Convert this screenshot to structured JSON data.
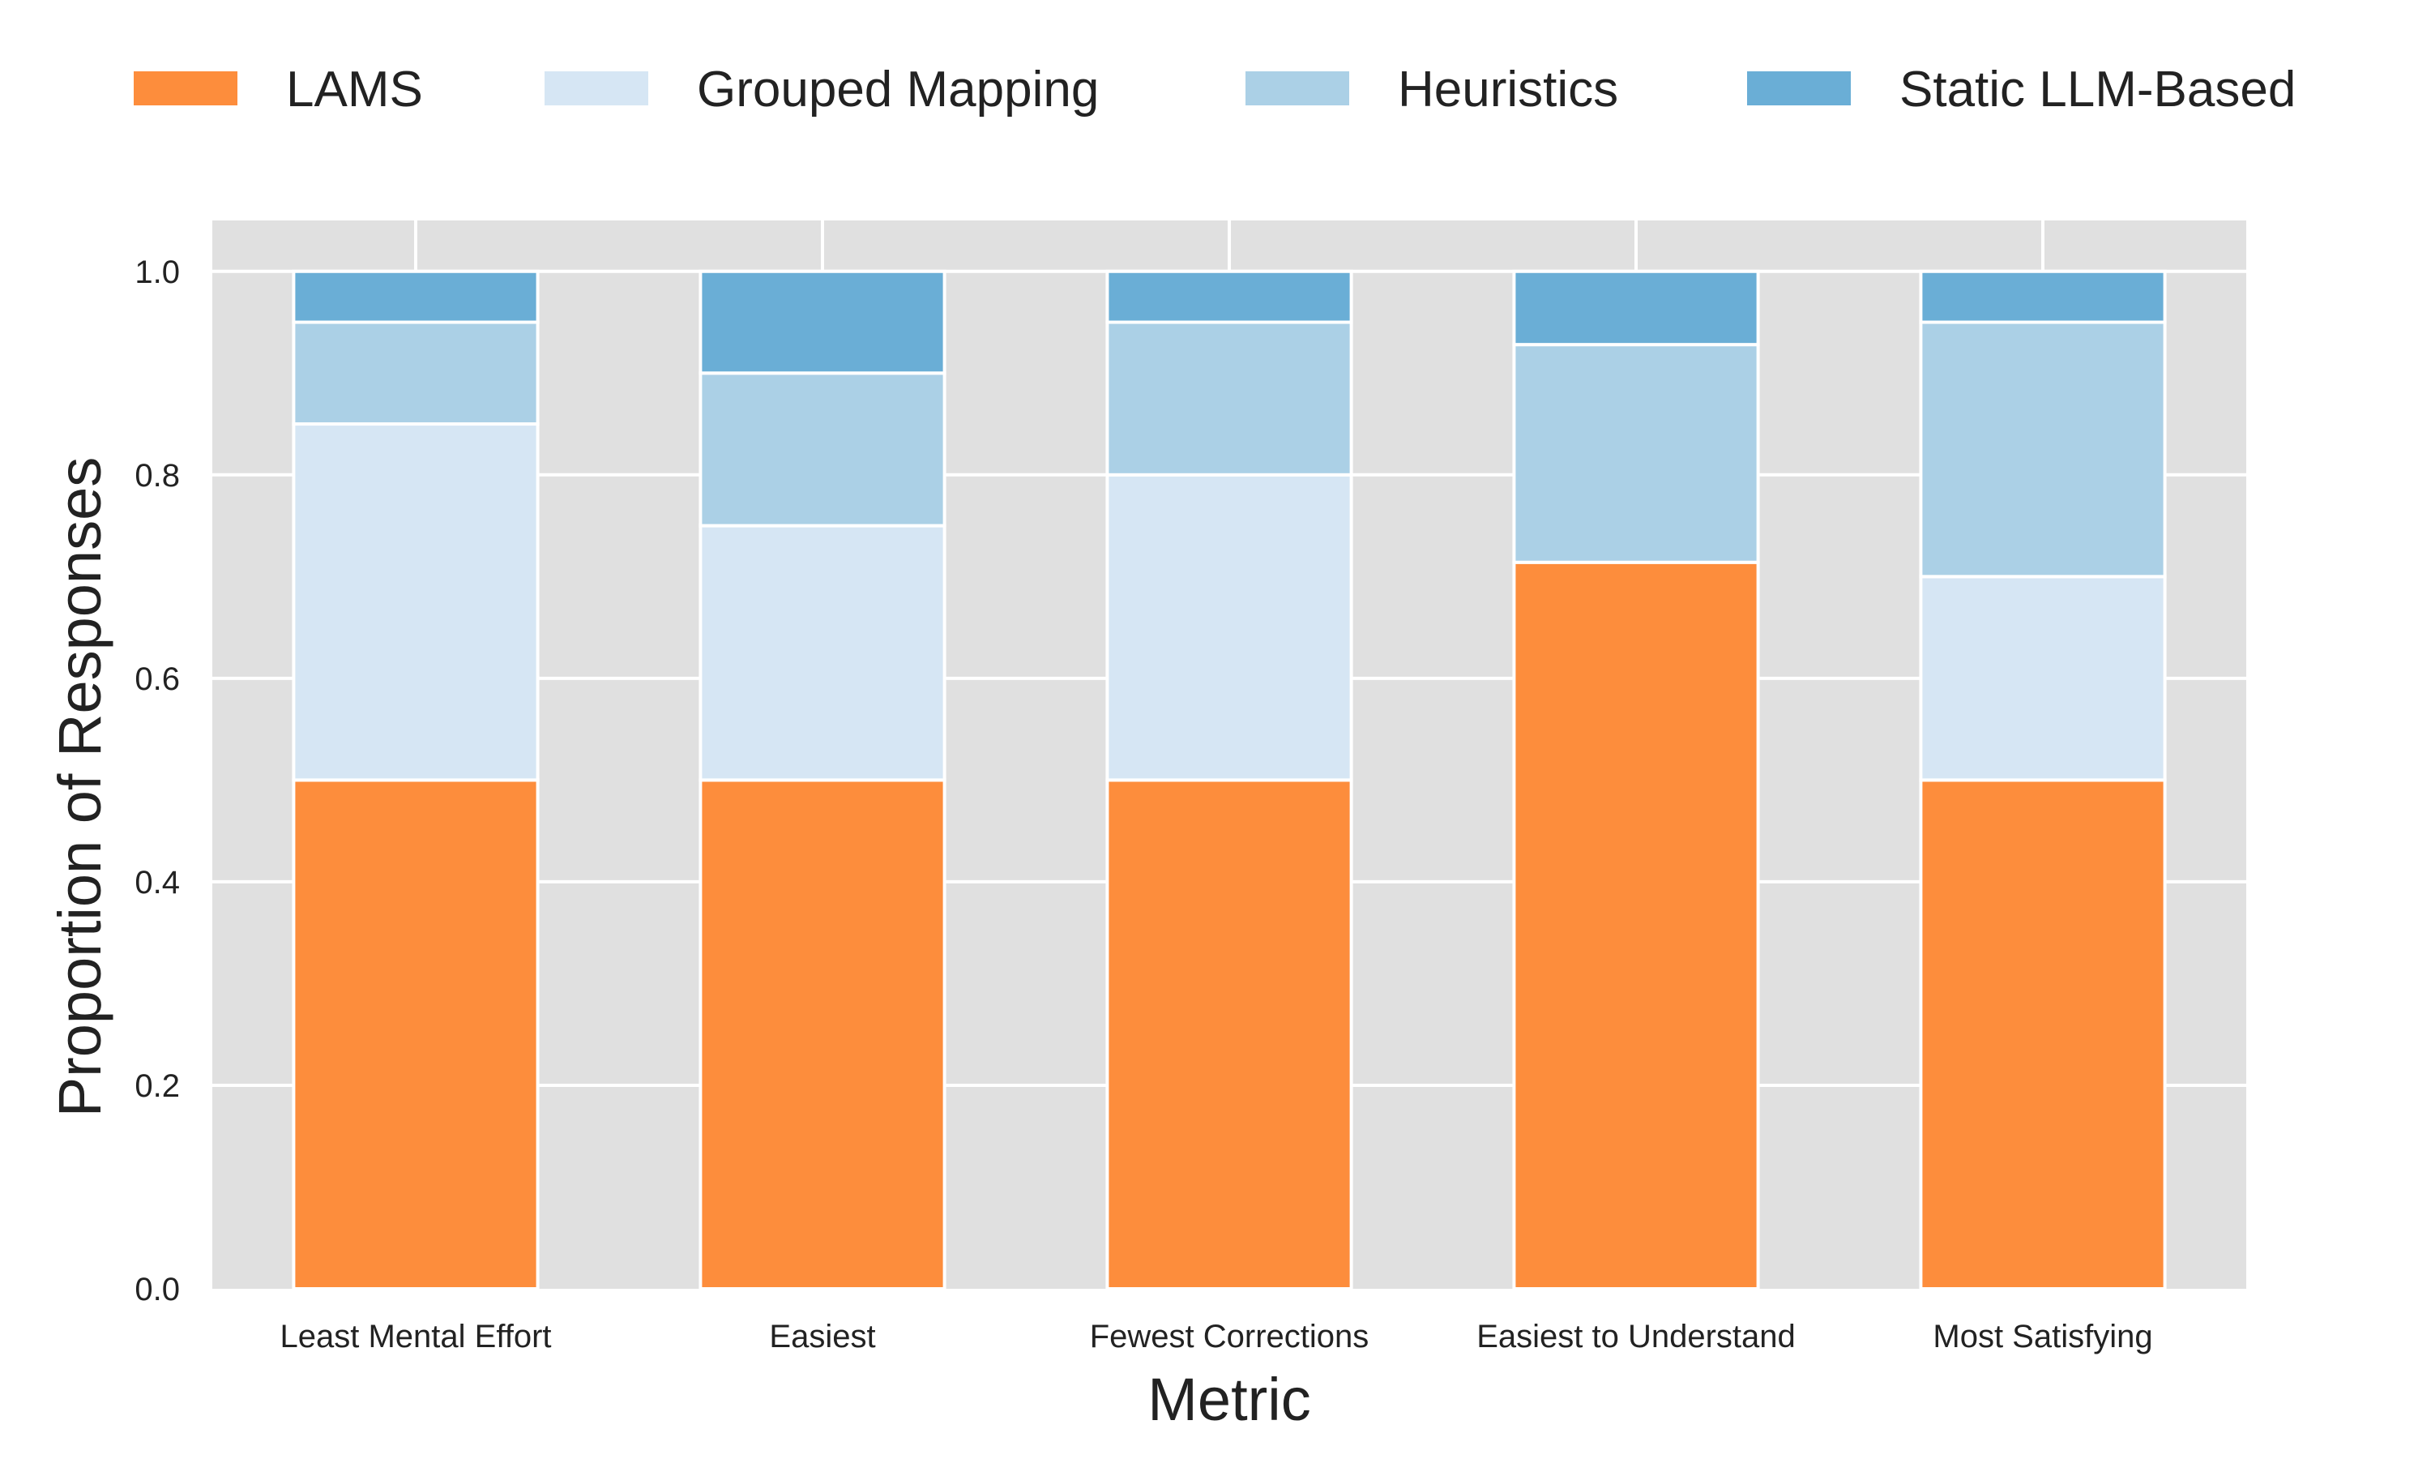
{
  "chart_data": {
    "type": "bar",
    "stacked": true,
    "title": "",
    "xlabel": "Metric",
    "ylabel": "Proportion of Responses",
    "ylim": [
      0,
      1.05
    ],
    "yticks": [
      0.0,
      0.2,
      0.4,
      0.6,
      0.8,
      1.0
    ],
    "ytick_labels": [
      "0.0",
      "0.2",
      "0.4",
      "0.6",
      "0.8",
      "1.0"
    ],
    "categories": [
      "Least Mental Effort",
      "Easiest",
      "Fewest Corrections",
      "Easiest to Understand",
      "Most Satisfying"
    ],
    "series": [
      {
        "name": "LAMS",
        "color": "#fd8d3c",
        "values": [
          0.5,
          0.5,
          0.5,
          0.714,
          0.5
        ]
      },
      {
        "name": "Grouped Mapping",
        "color": "#d6e6f4",
        "values": [
          0.35,
          0.25,
          0.3,
          0.0,
          0.2
        ]
      },
      {
        "name": "Heuristics",
        "color": "#abd0e6",
        "values": [
          0.1,
          0.15,
          0.15,
          0.214,
          0.25
        ]
      },
      {
        "name": "Static LLM-Based",
        "color": "#6aaed6",
        "values": [
          0.05,
          0.1,
          0.05,
          0.072,
          0.05
        ]
      }
    ],
    "legend_position": "top",
    "grid": true,
    "background_color": "#e0e0e0",
    "grid_color": "#ffffff"
  }
}
